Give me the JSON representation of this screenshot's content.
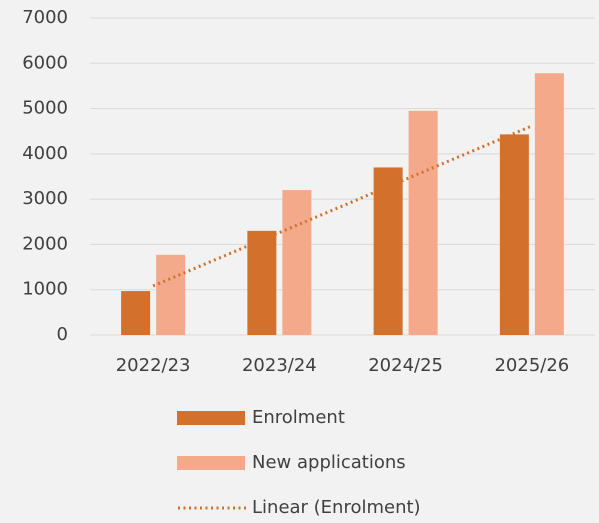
{
  "chart_data": {
    "type": "bar",
    "categories": [
      "2022/23",
      "2023/24",
      "2024/25",
      "2025/26"
    ],
    "series": [
      {
        "name": "Enrolment",
        "color": "#d2702c",
        "values": [
          970,
          2300,
          3700,
          4430
        ]
      },
      {
        "name": "New applications",
        "color": "#f4a98a",
        "values": [
          1770,
          3200,
          4950,
          5780
        ]
      }
    ],
    "trendline": {
      "name": "Linear (Enrolment)",
      "type": "linear",
      "series": 0,
      "color": "#d2702c"
    },
    "ylim": [
      0,
      7000
    ],
    "yticks": [
      0,
      1000,
      2000,
      3000,
      4000,
      5000,
      6000,
      7000
    ],
    "grid": true,
    "legend": "bottom"
  }
}
